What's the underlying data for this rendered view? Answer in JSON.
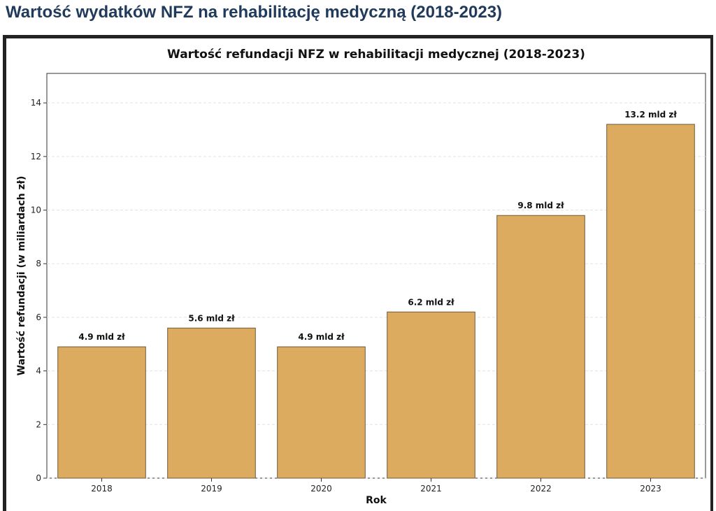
{
  "page": {
    "heading": "Wartość wydatków NFZ na rehabilitację medyczną (2018-2023)"
  },
  "colors": {
    "heading": "#1f3a5a",
    "bar_fill": "#ddab5f",
    "bar_stroke": "#6e5a3a",
    "grid": "#e3e3e3"
  },
  "chart_data": {
    "type": "bar",
    "title": "Wartość refundacji NFZ w rehabilitacji medycznej (2018-2023)",
    "xlabel": "Rok",
    "ylabel": "Wartość refundacji (w miliardach zł)",
    "categories": [
      "2018",
      "2019",
      "2020",
      "2021",
      "2022",
      "2023"
    ],
    "values": [
      4.9,
      5.6,
      4.9,
      6.2,
      9.8,
      13.2
    ],
    "data_labels": [
      "4.9 mld zł",
      "5.6 mld zł",
      "4.9 mld zł",
      "6.2 mld zł",
      "9.8 mld zł",
      "13.2 mld zł"
    ],
    "ylim": [
      0,
      15.1
    ],
    "yticks": [
      0,
      2,
      4,
      6,
      8,
      10,
      12,
      14
    ],
    "grid": true,
    "legend": "none"
  }
}
